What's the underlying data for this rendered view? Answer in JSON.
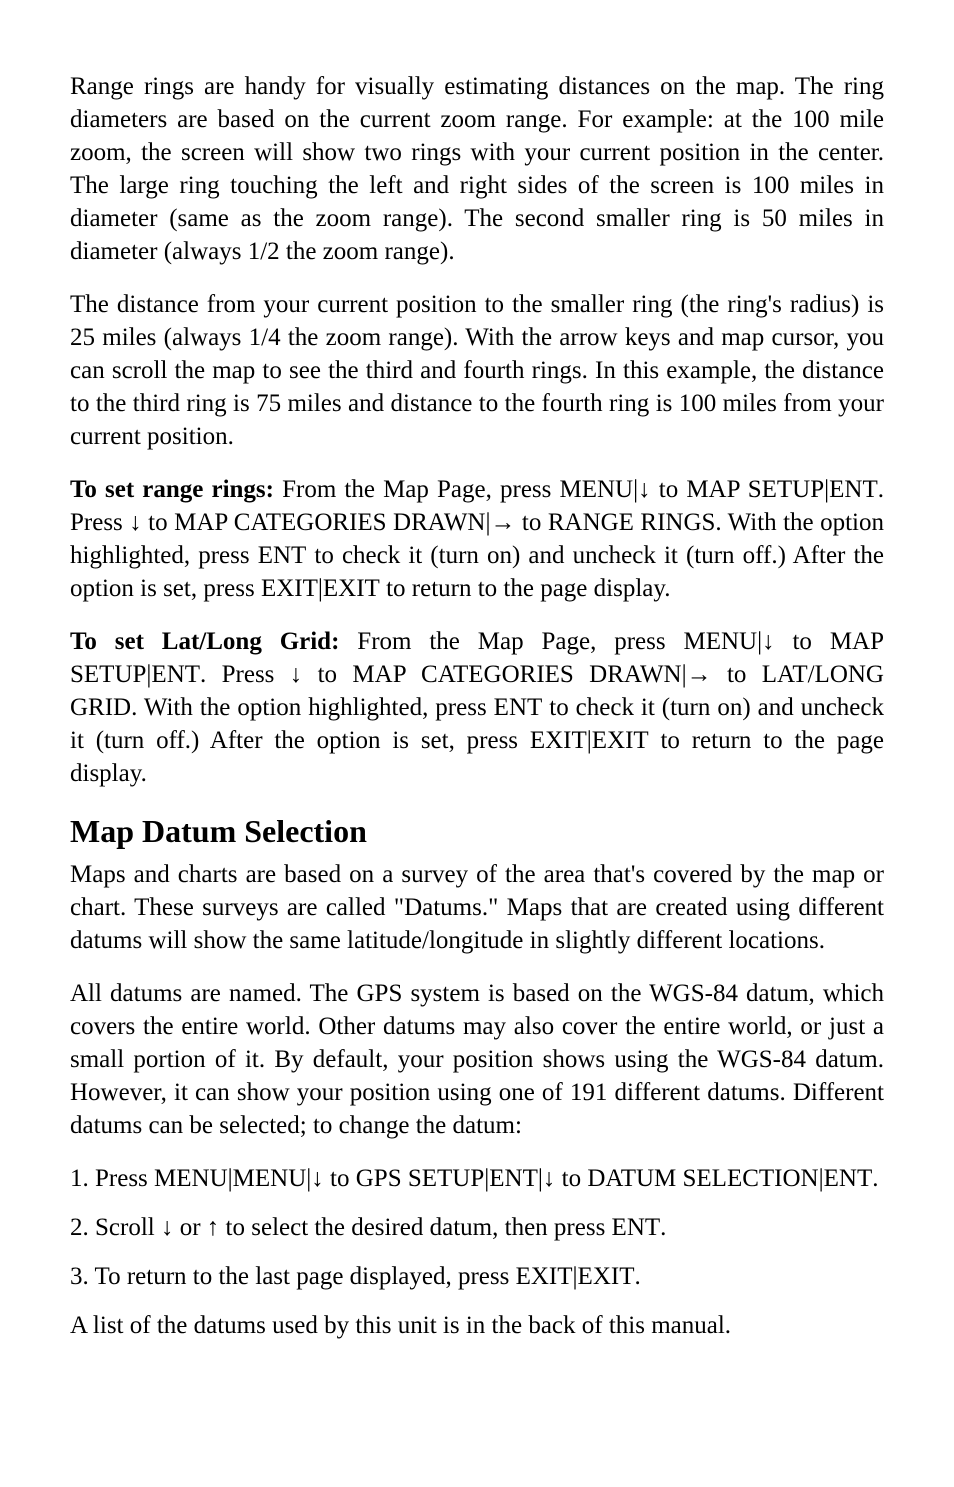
{
  "p1": "Range rings are handy for visually estimating distances on the map. The ring diameters are based on the current zoom range. For example: at the 100 mile zoom, the screen will show two rings with your current position in the center. The large ring touching the left and right sides of the screen is 100 miles in diameter (same as the zoom range). The second smaller ring is 50 miles in diameter (always 1/2 the zoom range).",
  "p2": "The distance from your current position to the smaller ring (the ring's radius) is 25 miles (always 1/4 the zoom range). With the arrow keys and map cursor, you can scroll the map to see the third and fourth rings. In this example, the distance to the third ring is 75 miles and distance to the fourth ring is 100 miles from your current position.",
  "range": {
    "lead_bold": "To set range rings:",
    "a": " From the Map Page, press ",
    "key_menu": "MENU",
    "b": "|",
    "arrow_down": "↓",
    "c": " to ",
    "key_map_setup": "MAP SETUP",
    "d": "|",
    "key_ent": "ENT",
    "e": ". Press ",
    "f": " to ",
    "key_map_cats": "MAP CATEGORIES DRAWN",
    "g": "|",
    "arrow_right": "→",
    "h": " to ",
    "key_range_rings": "RANGE RINGS",
    "i": ". With the option highlighted, press ",
    "j": " to check it (turn on) and uncheck it (turn off.) After the option is set, press ",
    "key_exit": "EXIT",
    "k": "|",
    "l": " to return to the page display."
  },
  "latlong": {
    "lead_bold": "To set Lat/Long Grid:",
    "a": " From the Map Page, press ",
    "key_menu": "MENU",
    "b": "|",
    "arrow_down": "↓",
    "c": " to ",
    "key_map_setup": "MAP SETUP",
    "d": "|",
    "key_ent": "ENT",
    "e": ". Press ",
    "f": " to ",
    "key_map_cats": "MAP CATEGORIES DRAWN",
    "g": "|",
    "arrow_right": "→",
    "h": " to ",
    "key_latlong": "LAT/LONG GRID",
    "i": ". With the option highlighted, press ",
    "j": " to check it (turn on) and uncheck it (turn off.) After the option is set, press ",
    "key_exit": "EXIT",
    "k": "|",
    "l": " to return to the page display."
  },
  "heading_datum": "Map Datum Selection",
  "p5": "Maps and charts are based on a survey of the area that's covered by the map or chart. These surveys are called \"Datums.\" Maps that are created using different datums will show the same latitude/longitude in slightly different locations.",
  "p6": "All datums are named. The GPS system is based on the WGS-84 datum, which covers the entire world. Other datums may also cover the entire world, or just a small portion of it. By default, your position shows using the WGS-84 datum. However, it can show your position using one of 191 different datums. Different datums can be selected; to change the datum:",
  "step1": {
    "a": "1. Press ",
    "key_menu": "MENU",
    "b": "|",
    "key_menu2": "MENU",
    "c": "|",
    "arrow_down": "↓",
    "d": " to ",
    "key_gps_setup": "GPS SETUP",
    "e": "|",
    "key_ent": "ENT",
    "f": "|",
    "g": " to ",
    "key_datum_sel": "DATUM SELECTION",
    "h": "|",
    "i": "."
  },
  "step2": {
    "a": "2. Scroll ",
    "arrow_down": "↓",
    "b": " or ",
    "arrow_up": "↑",
    "c": " to select the desired datum, then press ",
    "key_ent": "ENT",
    "d": "."
  },
  "step3": {
    "a": "3. To return to the last page displayed, press ",
    "key_exit": "EXIT",
    "b": "|",
    "key_exit2": "EXIT",
    "c": "."
  },
  "p7": "A list of the datums used by this unit is in the back of this manual."
}
